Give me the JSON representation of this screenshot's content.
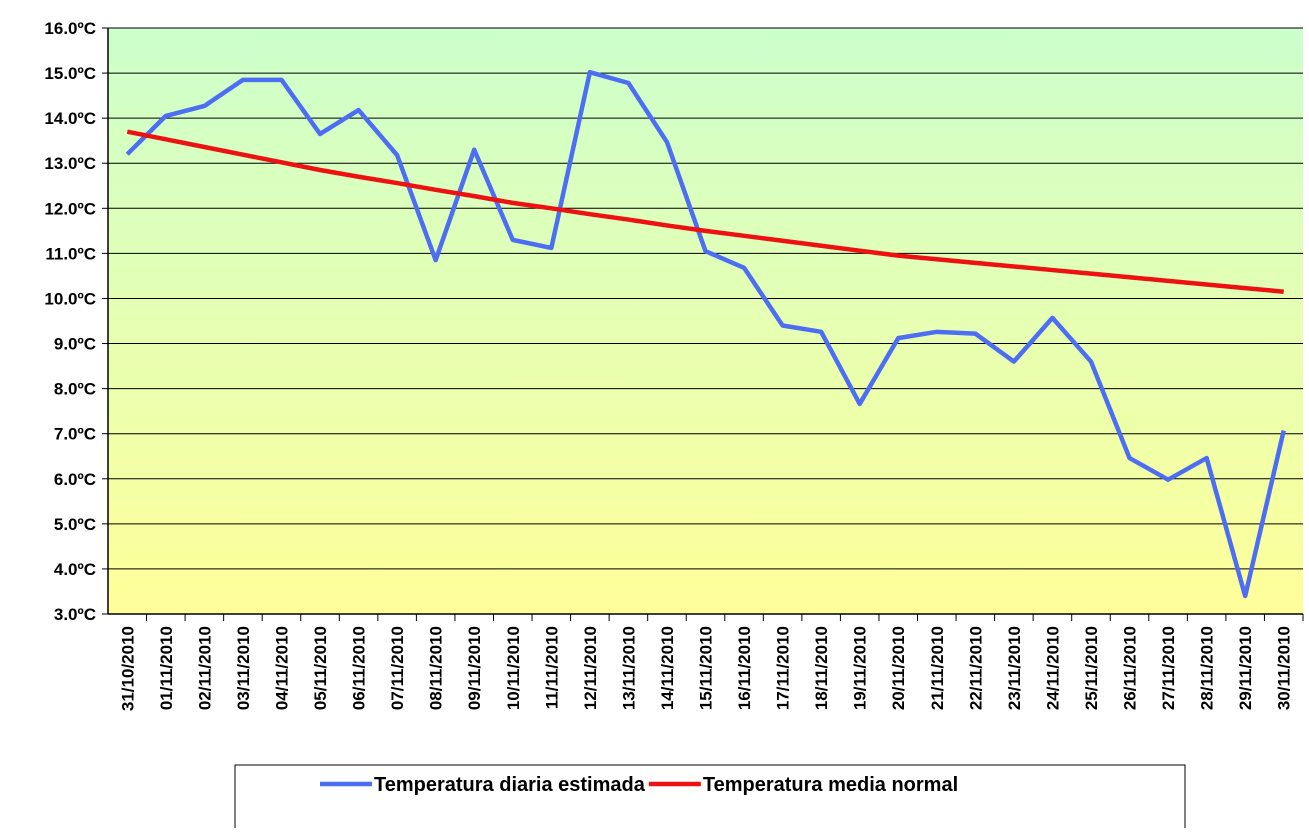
{
  "chart_data": {
    "type": "line",
    "categories": [
      "31/10/2010",
      "01/11/2010",
      "02/11/2010",
      "03/11/2010",
      "04/11/2010",
      "05/11/2010",
      "06/11/2010",
      "07/11/2010",
      "08/11/2010",
      "09/11/2010",
      "10/11/2010",
      "11/11/2010",
      "12/11/2010",
      "13/11/2010",
      "14/11/2010",
      "15/11/2010",
      "16/11/2010",
      "17/11/2010",
      "18/11/2010",
      "19/11/2010",
      "20/11/2010",
      "21/11/2010",
      "22/11/2010",
      "23/11/2010",
      "24/11/2010",
      "25/11/2010",
      "26/11/2010",
      "27/11/2010",
      "28/11/2010",
      "29/11/2010",
      "30/11/2010"
    ],
    "series": [
      {
        "name": "Temperatura diaria estimada",
        "color": "#4d6df3",
        "values": [
          13.2,
          14.05,
          14.27,
          14.85,
          14.85,
          13.65,
          14.18,
          13.18,
          10.85,
          13.3,
          11.3,
          11.12,
          15.02,
          14.78,
          13.47,
          11.05,
          10.68,
          9.4,
          9.26,
          7.66,
          9.12,
          9.26,
          9.22,
          8.6,
          9.57,
          8.6,
          6.46,
          5.98,
          6.46,
          3.4,
          7.07
        ]
      },
      {
        "name": "Temperatura media normal",
        "color": "#ee1111",
        "values": [
          13.7,
          13.53,
          13.36,
          13.19,
          13.02,
          12.85,
          12.7,
          12.56,
          12.41,
          12.27,
          12.12,
          12.0,
          11.87,
          11.75,
          11.62,
          11.5,
          11.39,
          11.28,
          11.17,
          11.06,
          10.95,
          10.87,
          10.79,
          10.71,
          10.63,
          10.55,
          10.47,
          10.39,
          10.31,
          10.23,
          10.15
        ]
      }
    ],
    "ylim": [
      3,
      16
    ],
    "yticks": [
      {
        "value": 3,
        "label": "3.0ºC"
      },
      {
        "value": 4,
        "label": "4.0ºC"
      },
      {
        "value": 5,
        "label": "5.0ºC"
      },
      {
        "value": 6,
        "label": "6.0ºC"
      },
      {
        "value": 7,
        "label": "7.0ºC"
      },
      {
        "value": 8,
        "label": "8.0ºC"
      },
      {
        "value": 9,
        "label": "9.0ºC"
      },
      {
        "value": 10,
        "label": "10.0ºC"
      },
      {
        "value": 11,
        "label": "11.0ºC"
      },
      {
        "value": 12,
        "label": "12.0ºC"
      },
      {
        "value": 13,
        "label": "13.0ºC"
      },
      {
        "value": 14,
        "label": "14.0ºC"
      },
      {
        "value": 15,
        "label": "15.0ºC"
      },
      {
        "value": 16,
        "label": "16.0ºC"
      }
    ],
    "grid": true,
    "legend": "bottom"
  }
}
